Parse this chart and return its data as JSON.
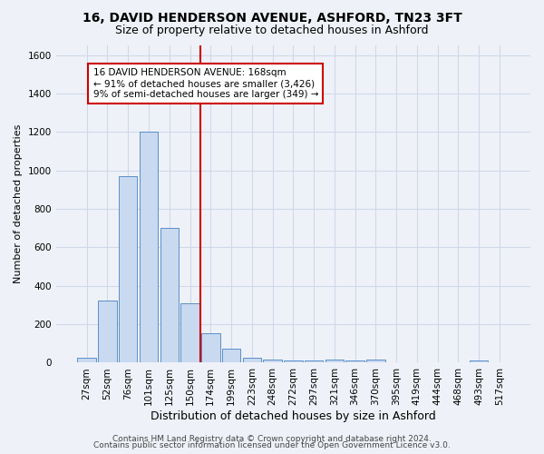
{
  "title1": "16, DAVID HENDERSON AVENUE, ASHFORD, TN23 3FT",
  "title2": "Size of property relative to detached houses in Ashford",
  "xlabel": "Distribution of detached houses by size in Ashford",
  "ylabel": "Number of detached properties",
  "footer1": "Contains HM Land Registry data © Crown copyright and database right 2024.",
  "footer2": "Contains public sector information licensed under the Open Government Licence v3.0.",
  "bar_labels": [
    "27sqm",
    "52sqm",
    "76sqm",
    "101sqm",
    "125sqm",
    "150sqm",
    "174sqm",
    "199sqm",
    "223sqm",
    "248sqm",
    "272sqm",
    "297sqm",
    "321sqm",
    "346sqm",
    "370sqm",
    "395sqm",
    "419sqm",
    "444sqm",
    "468sqm",
    "493sqm",
    "517sqm"
  ],
  "bar_heights": [
    25,
    325,
    970,
    1200,
    700,
    310,
    155,
    75,
    25,
    15,
    10,
    10,
    15,
    10,
    15,
    0,
    0,
    0,
    0,
    10,
    0
  ],
  "bar_color": "#c9d9f0",
  "bar_edge_color": "#5b8fc9",
  "grid_color": "#d0d8e8",
  "background_color": "#eef2f8",
  "vline_color": "#cc0000",
  "annotation_box_text": "16 DAVID HENDERSON AVENUE: 168sqm\n← 91% of detached houses are smaller (3,426)\n9% of semi-detached houses are larger (349) →",
  "annotation_box_color": "#cc0000",
  "annotation_box_facecolor": "white",
  "ylim": [
    0,
    1650
  ],
  "yticks": [
    0,
    200,
    400,
    600,
    800,
    1000,
    1200,
    1400,
    1600
  ],
  "title1_fontsize": 10,
  "title2_fontsize": 9,
  "xlabel_fontsize": 9,
  "ylabel_fontsize": 8,
  "annotation_fontsize": 7.5,
  "footer_fontsize": 6.5,
  "tick_fontsize": 7.5
}
